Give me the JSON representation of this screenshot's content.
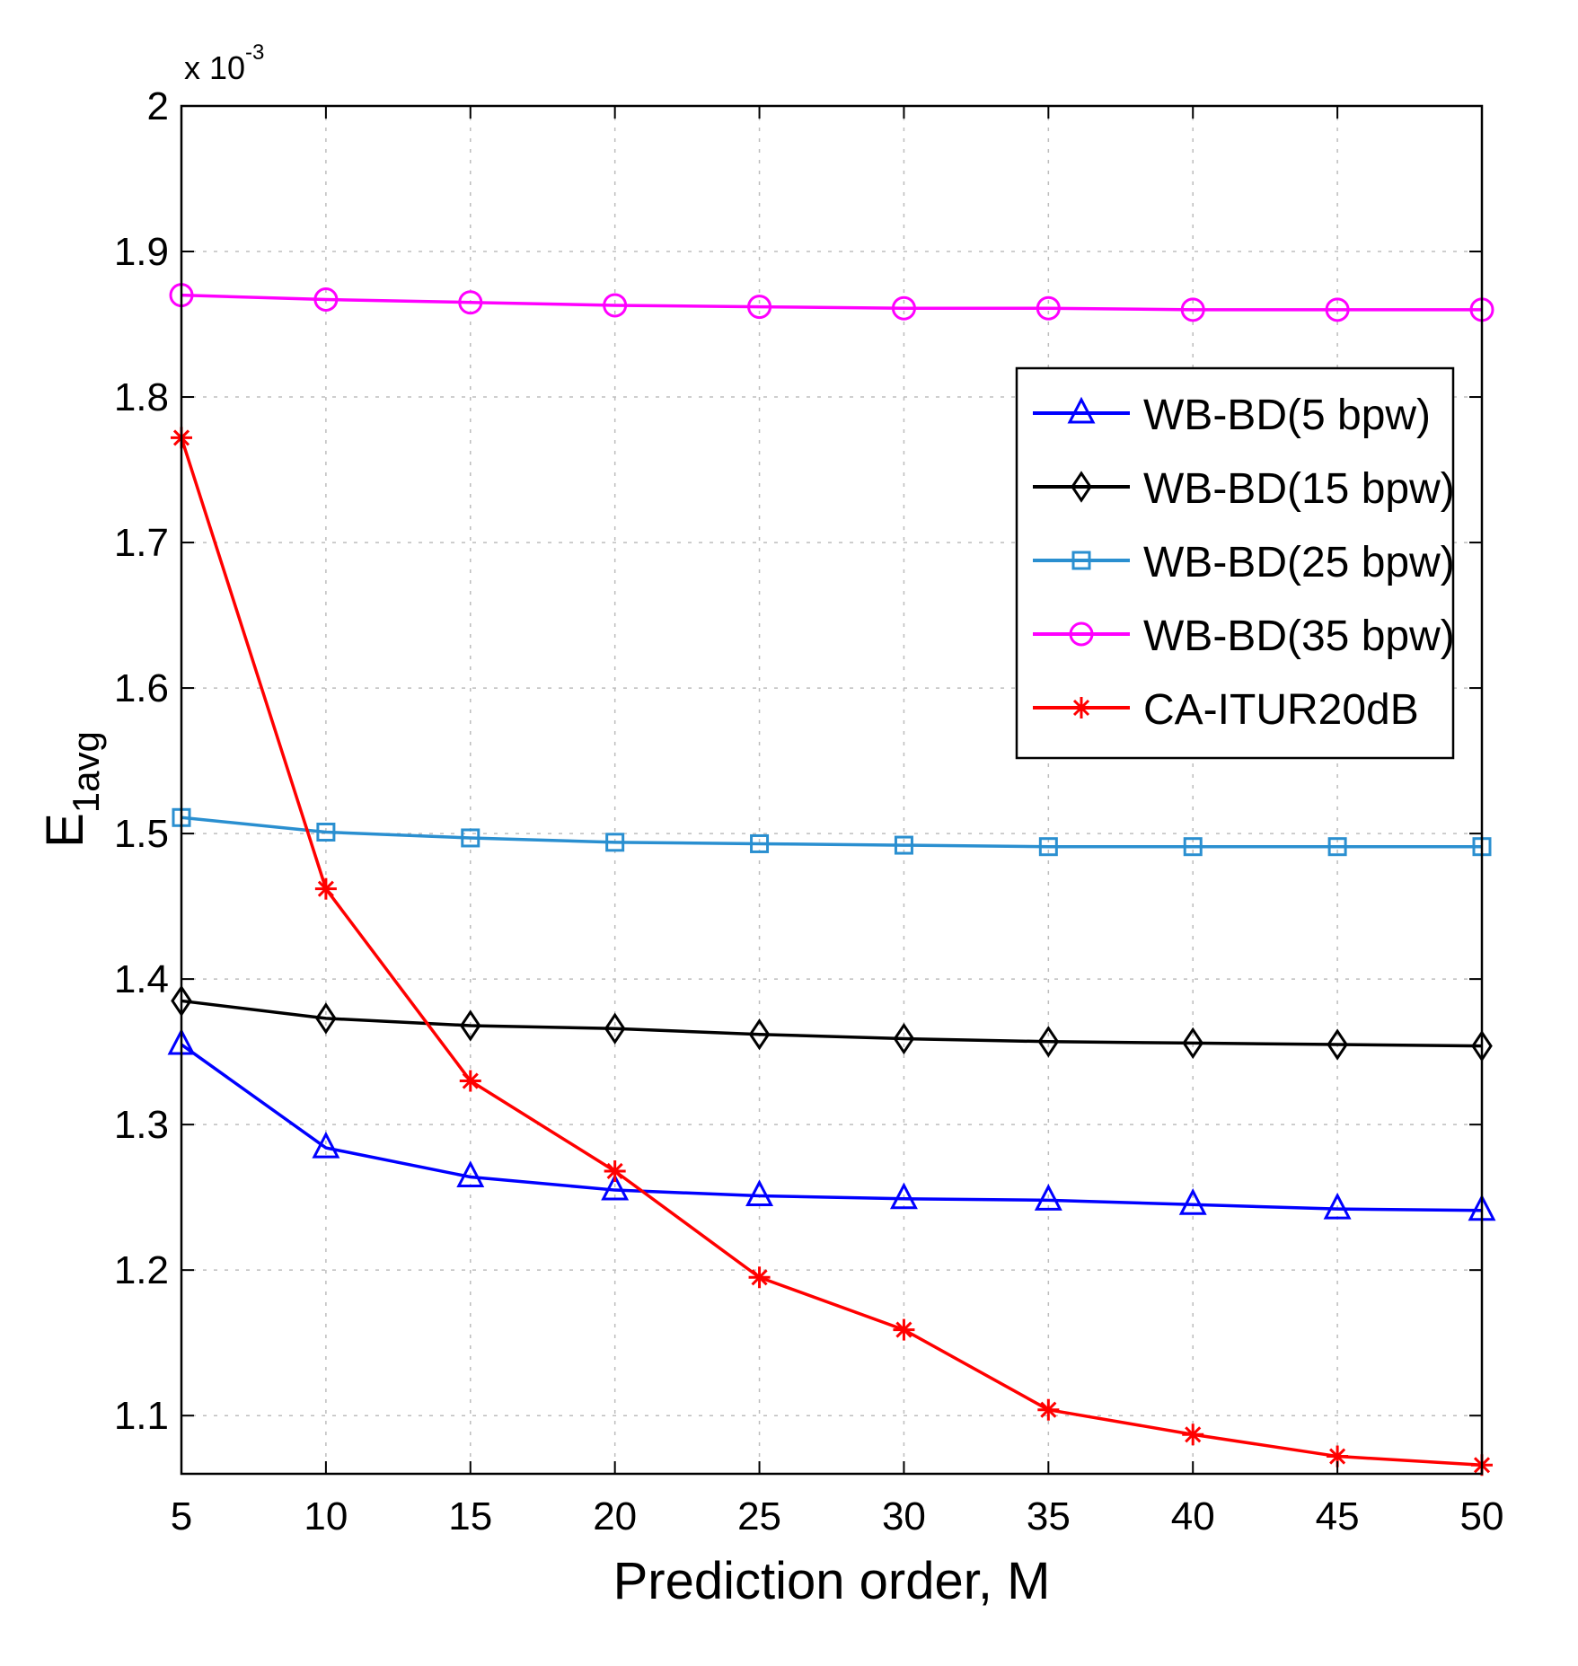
{
  "chart_data": {
    "type": "line",
    "title": "",
    "xlabel": "Prediction order, M",
    "ylabel_main": "E",
    "ylabel_sub": "1avg",
    "exponent_prefix": "x 10",
    "exponent_power": "-3",
    "xlim": [
      5,
      50
    ],
    "ylim": [
      1.06,
      2.0
    ],
    "grid": true,
    "legend_position": "upper-right",
    "x": [
      5,
      10,
      15,
      20,
      25,
      30,
      35,
      40,
      45,
      50
    ],
    "xticks": [
      5,
      10,
      15,
      20,
      25,
      30,
      35,
      40,
      45,
      50
    ],
    "xtick_labels": [
      "5",
      "10",
      "15",
      "20",
      "25",
      "30",
      "35",
      "40",
      "45",
      "50"
    ],
    "yticks": [
      1.1,
      1.2,
      1.3,
      1.4,
      1.5,
      1.6,
      1.7,
      1.8,
      1.9,
      2.0
    ],
    "ytick_labels": [
      "1.1",
      "1.2",
      "1.3",
      "1.4",
      "1.5",
      "1.6",
      "1.7",
      "1.8",
      "1.9",
      "2"
    ],
    "series": [
      {
        "name": "WB-BD(5 bpw)",
        "color": "#0000ff",
        "marker": "triangle",
        "values": [
          1.355,
          1.284,
          1.264,
          1.255,
          1.251,
          1.249,
          1.248,
          1.245,
          1.242,
          1.241
        ]
      },
      {
        "name": "WB-BD(15 bpw)",
        "color": "#000000",
        "marker": "diamond",
        "values": [
          1.385,
          1.373,
          1.368,
          1.366,
          1.362,
          1.359,
          1.357,
          1.356,
          1.355,
          1.354
        ]
      },
      {
        "name": "WB-BD(25 bpw)",
        "color": "#2a8fd0",
        "marker": "square",
        "values": [
          1.511,
          1.501,
          1.497,
          1.494,
          1.493,
          1.492,
          1.491,
          1.491,
          1.491,
          1.491
        ]
      },
      {
        "name": "WB-BD(35 bpw)",
        "color": "#ff00ff",
        "marker": "circle",
        "values": [
          1.87,
          1.867,
          1.865,
          1.863,
          1.862,
          1.861,
          1.861,
          1.86,
          1.86,
          1.86
        ]
      },
      {
        "name": "CA-ITUR20dB",
        "color": "#ff0000",
        "marker": "star",
        "values": [
          1.772,
          1.462,
          1.33,
          1.268,
          1.195,
          1.159,
          1.104,
          1.087,
          1.072,
          1.066
        ]
      }
    ]
  }
}
